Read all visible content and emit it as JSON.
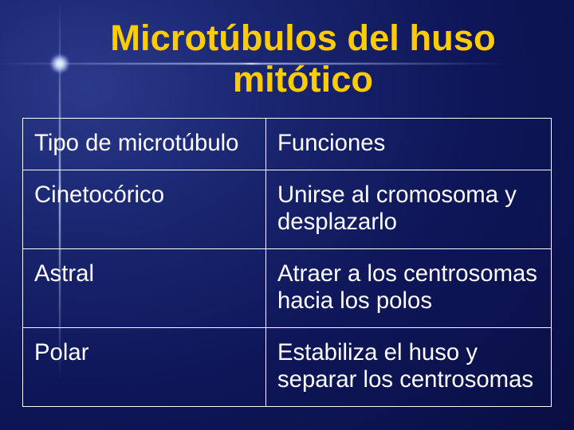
{
  "background_color": "#0f1a60",
  "title": {
    "line1": "Microtúbulos del huso",
    "line2": "mitótico",
    "color": "#ffcc00",
    "fontsize_pt": 34,
    "font_weight": "bold"
  },
  "table": {
    "border_color": "#ffffff",
    "text_color": "#ffffff",
    "cell_bg": "transparent",
    "fontsize_pt": 22,
    "column_widths_pct": [
      46,
      54
    ],
    "columns": [
      "Tipo de microtúbulo",
      "Funciones"
    ],
    "rows": [
      [
        "Cinetocórico",
        "Unirse al cromosoma y desplazarlo"
      ],
      [
        "Astral",
        "Atraer a los centrosomas hacia los polos"
      ],
      [
        "Polar",
        "Estabiliza el huso y separar los centrosomas"
      ]
    ]
  }
}
